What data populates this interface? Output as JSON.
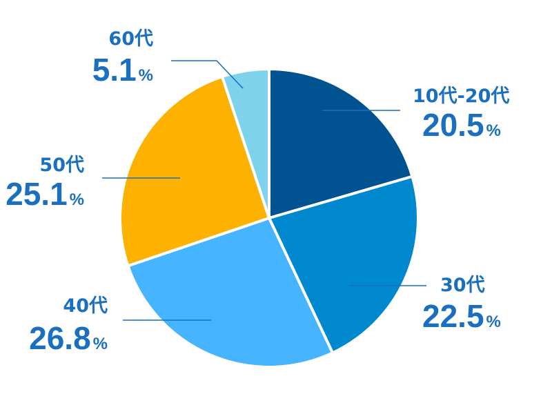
{
  "chart_data": {
    "type": "pie",
    "start_angle_deg": 0,
    "direction": "clockwise",
    "unit": "%",
    "slices": [
      {
        "label": "10代-20代",
        "value": 20.5,
        "value_label": "20.5",
        "color": "#005291"
      },
      {
        "label": "30代",
        "value": 22.5,
        "value_label": "22.5",
        "color": "#0088cf"
      },
      {
        "label": "40代",
        "value": 26.8,
        "value_label": "26.8",
        "color": "#46b4ff"
      },
      {
        "label": "50代",
        "value": 25.1,
        "value_label": "25.1",
        "color": "#fdb100"
      },
      {
        "label": "60代",
        "value": 5.1,
        "value_label": "5.1",
        "color": "#7fd2ec"
      }
    ],
    "label_color": "#1a6fc0"
  }
}
